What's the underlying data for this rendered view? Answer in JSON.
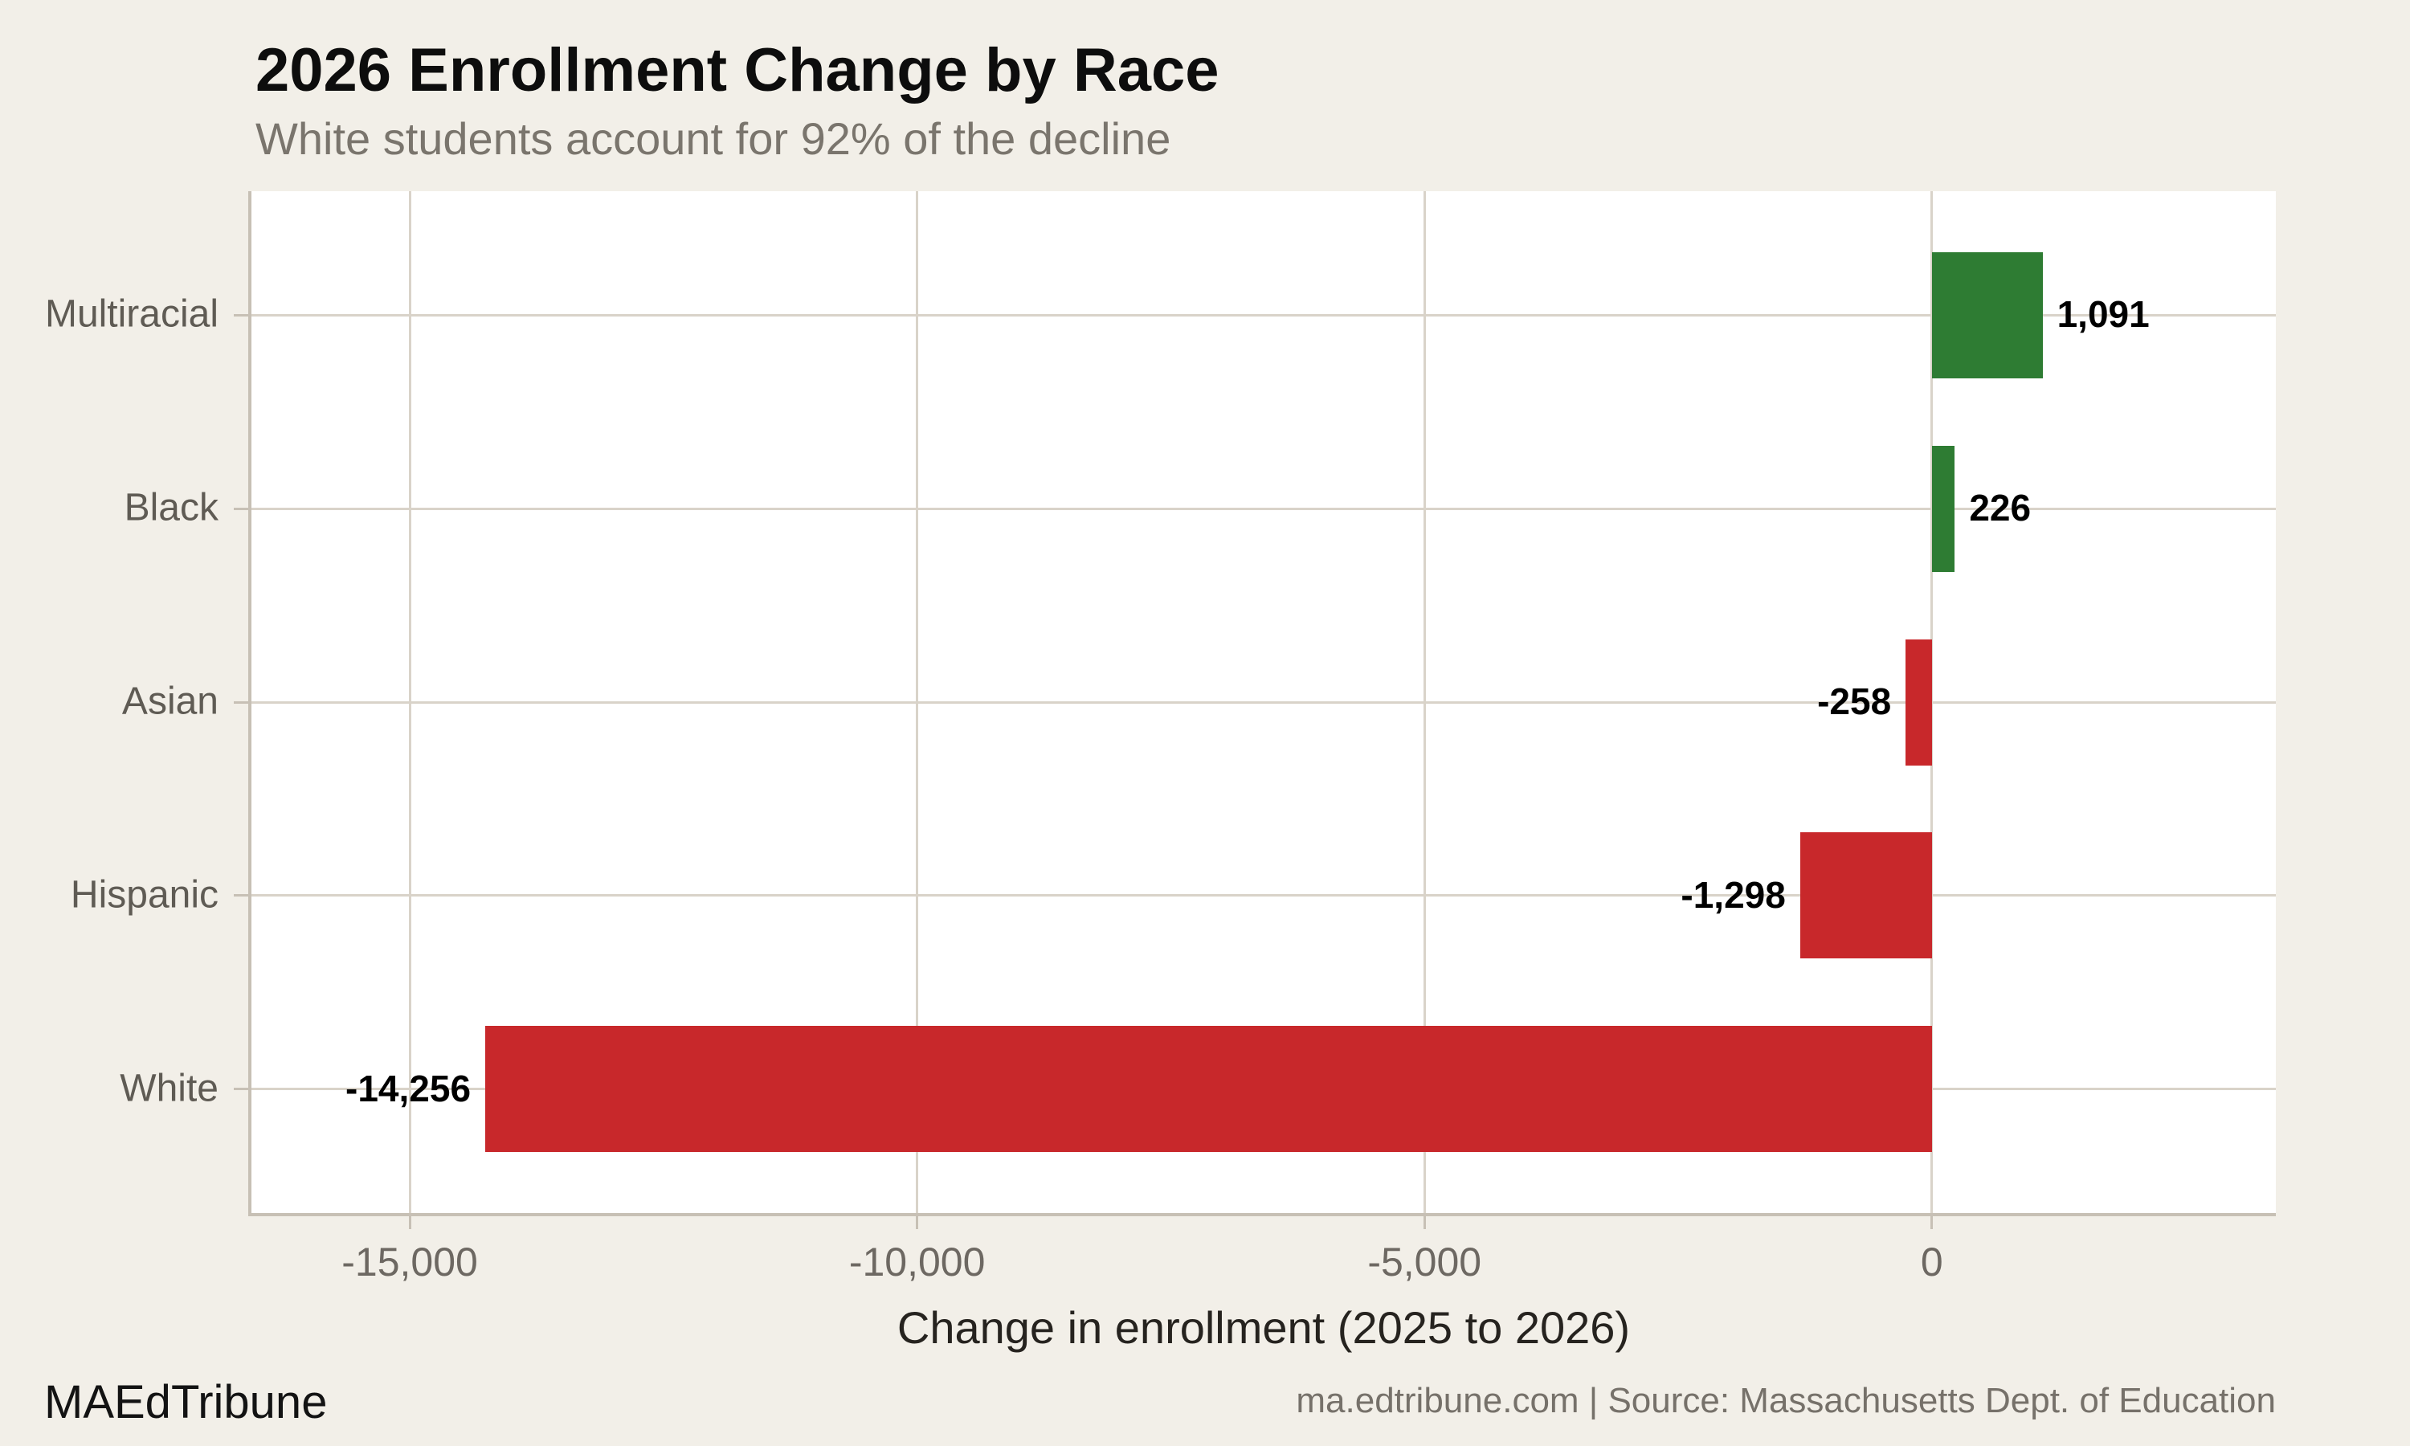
{
  "chart_data": {
    "type": "bar",
    "orientation": "horizontal",
    "title": "2026 Enrollment Change by Race",
    "subtitle": "White students account for 92% of the decline",
    "xlabel": "Change in enrollment (2025 to 2026)",
    "categories": [
      "Multiracial",
      "Black",
      "Asian",
      "Hispanic",
      "White"
    ],
    "values": [
      1091,
      226,
      -258,
      -1298,
      -14256
    ],
    "value_labels": [
      "1,091",
      "226",
      "-258",
      "-1,298",
      "-14,256"
    ],
    "xticks": [
      -15000,
      -10000,
      -5000,
      0
    ],
    "xtick_labels": [
      "-15,000",
      "-10,000",
      "-5,000",
      "0"
    ],
    "xlim": [
      -16560,
      3390
    ],
    "grid": true,
    "legend": "none",
    "colors": {
      "positive": "#2e7c33",
      "negative": "#c8282b",
      "plot_background": "#ffffff",
      "page_background": "#f2efe8",
      "gridline": "#d9d3c9",
      "spine": "#c7c0b5"
    }
  },
  "footer": {
    "brand": "MAEdTribune",
    "source": "ma.edtribune.com | Source: Massachusetts Dept. of Education"
  }
}
